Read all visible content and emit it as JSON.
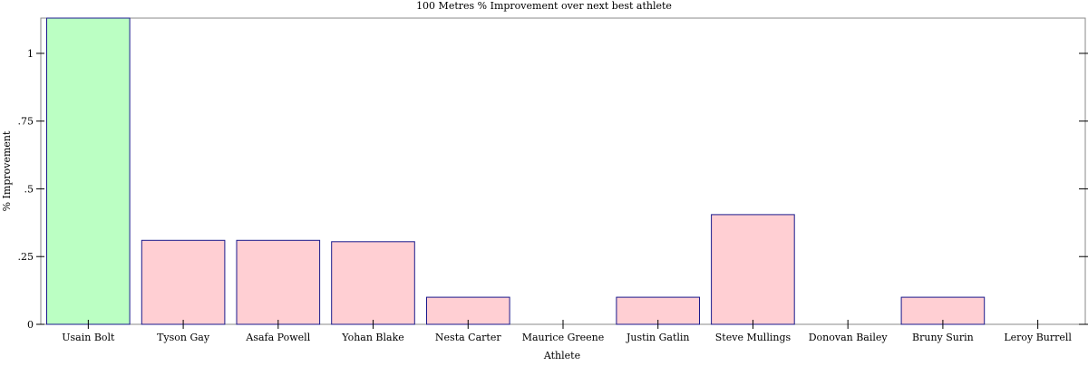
{
  "chart_data": {
    "type": "bar",
    "title": "100 Metres % Improvement over next best athlete",
    "xlabel": "Athlete",
    "ylabel": "% Improvement",
    "categories": [
      "Usain Bolt",
      "Tyson Gay",
      "Asafa Powell",
      "Yohan Blake",
      "Nesta Carter",
      "Maurice Greene",
      "Justin Gatlin",
      "Steve Mullings",
      "Donovan Bailey",
      "Bruny Surin",
      "Leroy Burrell"
    ],
    "values": [
      1.13,
      0.31,
      0.31,
      0.305,
      0.1,
      0.0,
      0.1,
      0.405,
      0.0,
      0.1,
      0.0
    ],
    "ylim": [
      0,
      1.13
    ],
    "yticks": [
      0,
      0.25,
      0.5,
      0.75,
      1
    ],
    "ytick_labels": [
      "0",
      ".25",
      ".5",
      ".75",
      "1"
    ],
    "grid": false,
    "colors": {
      "highlight_fill": "#bbffc3",
      "bar_fill": "#ffcfd3",
      "bar_stroke": "#1a1a8c",
      "frame": "#888888"
    }
  }
}
